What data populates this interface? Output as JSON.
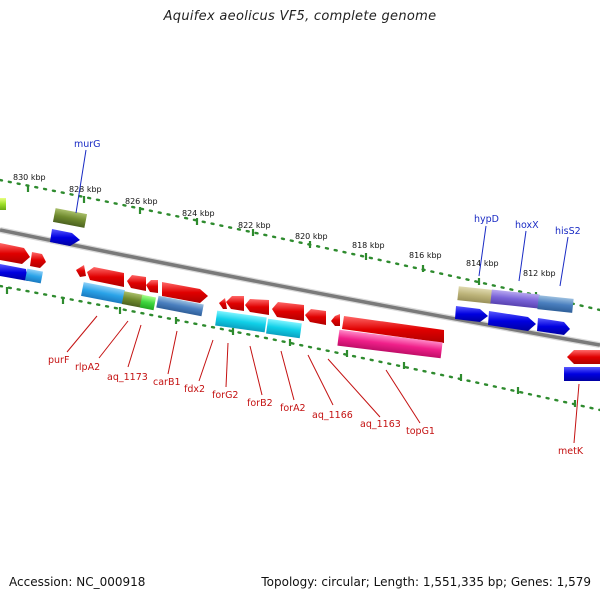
{
  "header": {
    "title": "Aquifex aeolicus VF5, complete genome"
  },
  "footer": {
    "accession": "Accession: NC_000918",
    "stats": "Topology: circular; Length: 1,551,335 bp; Genes: 1,579"
  },
  "colors": {
    "backbone": "#7a7a7a",
    "scale_ticks": "#2e8b2e",
    "label_top": "#1a2bc4",
    "label_bottom": "#c41111"
  },
  "scale_labels": [
    {
      "kbp": 830,
      "label": "830 kbp"
    },
    {
      "kbp": 828,
      "label": "828 kbp"
    },
    {
      "kbp": 826,
      "label": "826 kbp"
    },
    {
      "kbp": 824,
      "label": "824 kbp"
    },
    {
      "kbp": 822,
      "label": "822 kbp"
    },
    {
      "kbp": 820,
      "label": "820 kbp"
    },
    {
      "kbp": 818,
      "label": "818 kbp"
    },
    {
      "kbp": 816,
      "label": "816 kbp"
    },
    {
      "kbp": 814,
      "label": "814 kbp"
    },
    {
      "kbp": 812,
      "label": "812 kbp"
    }
  ],
  "gene_labels_top": [
    "murG",
    "hypD",
    "hoxX",
    "hisS2"
  ],
  "gene_labels_bottom": [
    "purF",
    "rlpA2",
    "aq_1173",
    "carB1",
    "fdx2",
    "forG2",
    "forB2",
    "forA2",
    "aq_1166",
    "aq_1163",
    "topG1",
    "metK"
  ]
}
